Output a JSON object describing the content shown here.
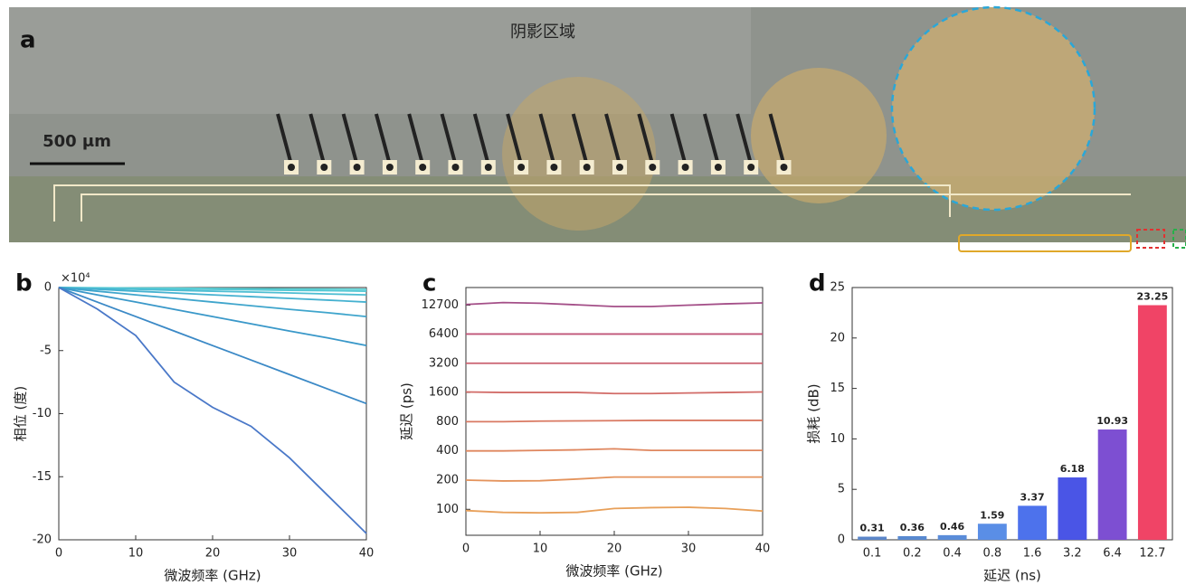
{
  "panel_a": {
    "label": "a",
    "region_label": "阴影区域",
    "scale_bar": "500 μm"
  },
  "chart_data": [
    {
      "type": "line",
      "panel_label": "b",
      "y_multiplier": "×10⁴",
      "xlabel": "微波频率 (GHz)",
      "ylabel": "相位 (度)",
      "x": [
        0,
        5,
        10,
        15,
        20,
        25,
        30,
        35,
        40
      ],
      "xlim": [
        0,
        40
      ],
      "xticks": [
        0,
        10,
        20,
        30,
        40
      ],
      "ylim": [
        -20,
        0
      ],
      "yticks": [
        0,
        -5,
        -10,
        -15,
        -20
      ],
      "series": [
        {
          "color": "#5fd3d6",
          "values": [
            0,
            -0.02,
            -0.04,
            -0.05,
            -0.07,
            -0.09,
            -0.11,
            -0.12,
            -0.14
          ]
        },
        {
          "color": "#55c8d4",
          "values": [
            0,
            -0.04,
            -0.07,
            -0.11,
            -0.14,
            -0.18,
            -0.22,
            -0.25,
            -0.29
          ]
        },
        {
          "color": "#4dbdd2",
          "values": [
            0,
            -0.07,
            -0.14,
            -0.22,
            -0.29,
            -0.36,
            -0.43,
            -0.51,
            -0.58
          ]
        },
        {
          "color": "#45b1d0",
          "values": [
            0,
            -0.14,
            -0.29,
            -0.43,
            -0.58,
            -0.72,
            -0.86,
            -1.0,
            -1.15
          ]
        },
        {
          "color": "#3fa5cc",
          "values": [
            0,
            -0.29,
            -0.58,
            -0.86,
            -1.15,
            -1.44,
            -1.73,
            -2.0,
            -2.3
          ]
        },
        {
          "color": "#3a98c9",
          "values": [
            0,
            -0.58,
            -1.15,
            -1.73,
            -2.3,
            -2.88,
            -3.45,
            -4.0,
            -4.6
          ]
        },
        {
          "color": "#3b89c6",
          "values": [
            0,
            -1.15,
            -2.3,
            -3.45,
            -4.6,
            -5.75,
            -6.9,
            -8.05,
            -9.2
          ]
        },
        {
          "color": "#4a78c8",
          "values": [
            0,
            -1.7,
            -3.8,
            -7.5,
            -9.5,
            -11.0,
            -13.5,
            -16.5,
            -19.5
          ]
        }
      ]
    },
    {
      "type": "line",
      "log": true,
      "panel_label": "c",
      "xlabel": "微波频率 (GHz)",
      "ylabel": "延迟 (ps)",
      "x": [
        0,
        5,
        10,
        15,
        20,
        25,
        30,
        35,
        40
      ],
      "xlim": [
        0,
        40
      ],
      "xticks": [
        0,
        10,
        20,
        30,
        40
      ],
      "ylim": [
        54,
        19300
      ],
      "yticks": [
        100,
        200,
        400,
        800,
        1600,
        3200,
        6400,
        12700
      ],
      "series": [
        {
          "color": "#e8a05a",
          "values": [
            97,
            93,
            92,
            93,
            102,
            104,
            105,
            102,
            96
          ]
        },
        {
          "color": "#e4935c",
          "values": [
            200,
            196,
            197,
            205,
            215,
            215,
            215,
            215,
            215
          ]
        },
        {
          "color": "#df865e",
          "values": [
            400,
            400,
            405,
            410,
            420,
            405,
            405,
            405,
            405
          ]
        },
        {
          "color": "#d97962",
          "values": [
            800,
            800,
            810,
            815,
            820,
            825,
            825,
            825,
            825
          ]
        },
        {
          "color": "#d26c68",
          "values": [
            1620,
            1600,
            1600,
            1600,
            1560,
            1560,
            1580,
            1600,
            1620
          ]
        },
        {
          "color": "#ca606f",
          "values": [
            3200,
            3200,
            3200,
            3200,
            3200,
            3200,
            3200,
            3200,
            3200
          ]
        },
        {
          "color": "#c05578",
          "values": [
            6400,
            6400,
            6400,
            6400,
            6400,
            6400,
            6400,
            6400,
            6400
          ]
        },
        {
          "color": "#a44f88",
          "values": [
            12900,
            13500,
            13300,
            12800,
            12300,
            12300,
            12700,
            13100,
            13400
          ]
        }
      ]
    },
    {
      "type": "bar",
      "panel_label": "d",
      "xlabel": "延迟 (ns)",
      "ylabel": "损耗 (dB)",
      "categories": [
        "0.1",
        "0.2",
        "0.4",
        "0.8",
        "1.6",
        "3.2",
        "6.4",
        "12.7"
      ],
      "values": [
        0.31,
        0.36,
        0.46,
        1.59,
        3.37,
        6.18,
        10.93,
        23.25
      ],
      "colors": [
        "#5b86c9",
        "#5889d0",
        "#5a8cd9",
        "#5a8ee6",
        "#4d72ec",
        "#4a55e6",
        "#7d4fd2",
        "#f04466"
      ],
      "ylim": [
        0,
        25
      ],
      "yticks": [
        0,
        5,
        10,
        15,
        20,
        25
      ]
    }
  ]
}
